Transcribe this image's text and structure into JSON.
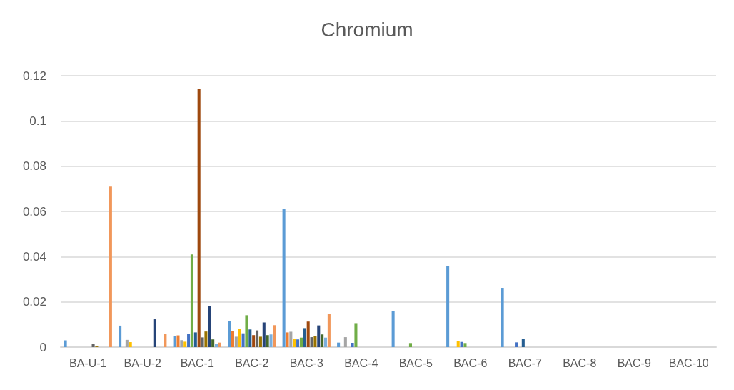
{
  "chart_data": {
    "type": "bar",
    "title": "Chromium",
    "categories": [
      "BA-U-1",
      "BA-U-2",
      "BAC-1",
      "BAC-2",
      "BAC-3",
      "BAC-4",
      "BAC-5",
      "BAC-6",
      "BAC-7",
      "BAC-8",
      "BAC-9",
      "BAC-10"
    ],
    "series": [
      {
        "color": "#5b9bd5",
        "values": [
          0.003,
          0.0095,
          0.0049,
          0.0114,
          0.0613,
          0.002,
          0.0159,
          0.0359,
          0.0262,
          null,
          null,
          null
        ]
      },
      {
        "color": "#ed7d31",
        "values": [
          null,
          null,
          0.0052,
          0.0072,
          0.0065,
          null,
          null,
          null,
          null,
          null,
          null,
          null
        ]
      },
      {
        "color": "#a5a5a5",
        "values": [
          null,
          0.0032,
          0.0031,
          0.0046,
          0.0068,
          0.0044,
          null,
          null,
          null,
          null,
          null,
          null
        ]
      },
      {
        "color": "#ffc000",
        "values": [
          null,
          0.0022,
          0.0024,
          0.0079,
          0.0036,
          null,
          null,
          0.0026,
          null,
          null,
          null,
          null
        ]
      },
      {
        "color": "#4472c4",
        "values": [
          null,
          null,
          0.0059,
          0.0061,
          0.0034,
          0.0019,
          null,
          0.0023,
          0.0021,
          null,
          null,
          null
        ]
      },
      {
        "color": "#70ad47",
        "values": [
          null,
          null,
          0.041,
          0.0141,
          0.0042,
          0.0106,
          0.0018,
          0.0018,
          null,
          null,
          null,
          null
        ]
      },
      {
        "color": "#255e91",
        "values": [
          null,
          null,
          0.0065,
          0.0078,
          0.0084,
          null,
          null,
          null,
          0.0037,
          null,
          null,
          null
        ]
      },
      {
        "color": "#9e480e",
        "values": [
          null,
          null,
          0.114,
          0.0053,
          0.0113,
          null,
          null,
          null,
          null,
          null,
          null,
          null
        ]
      },
      {
        "color": "#636363",
        "values": [
          0.0013,
          null,
          0.0043,
          0.0074,
          0.0044,
          null,
          null,
          null,
          null,
          null,
          null,
          null
        ]
      },
      {
        "color": "#997300",
        "values": [
          0.0003,
          null,
          0.0069,
          0.0046,
          0.0049,
          null,
          null,
          null,
          null,
          null,
          null,
          null
        ]
      },
      {
        "color": "#264478",
        "values": [
          null,
          0.0123,
          0.0183,
          0.0109,
          0.0096,
          null,
          null,
          null,
          null,
          null,
          null,
          null
        ]
      },
      {
        "color": "#43682b",
        "values": [
          null,
          null,
          0.0034,
          0.0053,
          0.0056,
          null,
          null,
          null,
          null,
          null,
          null,
          null
        ]
      },
      {
        "color": "#7cafdd",
        "values": [
          null,
          null,
          0.0015,
          0.0056,
          0.0042,
          null,
          null,
          null,
          null,
          null,
          null,
          null
        ]
      },
      {
        "color": "#f1975a",
        "values": [
          0.071,
          0.006,
          0.002,
          0.0097,
          0.0147,
          null,
          null,
          null,
          null,
          null,
          null,
          null
        ]
      }
    ],
    "ylim": [
      0,
      0.12
    ],
    "yticks": [
      0,
      0.02,
      0.04,
      0.06,
      0.08,
      0.1,
      0.12
    ],
    "grid": "y"
  }
}
